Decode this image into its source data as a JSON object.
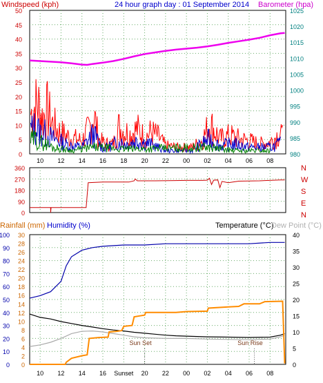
{
  "header": {
    "left_label": "Windspeed (kph)",
    "title": "24 hour graph day : 01 September 2014",
    "right_label": "Barometer (hpa)"
  },
  "colors": {
    "plot_bg": "#ffffff",
    "axis_line": "#000000",
    "grid": "#66aa66",
    "wind_gust": "#ff0000",
    "wind_avg": "#0000cc",
    "wind_low": "#008000",
    "barometer": "#ee00ee",
    "left_axis": "#cc0000",
    "right_axis": "#008080",
    "direction": "#cc0000",
    "humidity": "#0000aa",
    "temperature": "#000000",
    "dew_point": "#aaaaaa",
    "rainfall": "#ff8c00",
    "text_red": "#cc0000",
    "text_magenta": "#cc00cc",
    "text_blue": "#0000cc",
    "text_black": "#000000",
    "text_grey": "#b0b0b0",
    "text_orange": "#cc6600"
  },
  "chart_data": [
    {
      "type": "line",
      "name_ref": "wind_barometer",
      "x_hours_start": 9,
      "x_hours_end": 33.5,
      "x_ticks": [
        "10",
        "12",
        "14",
        "16",
        "18",
        "20",
        "22",
        "00",
        "02",
        "04",
        "06",
        "08"
      ],
      "y_left": {
        "label": "Windspeed (kph)",
        "ylim": [
          0,
          50
        ],
        "ticks": [
          0,
          5,
          10,
          15,
          20,
          25,
          30,
          35,
          40,
          45,
          50
        ]
      },
      "y_right": {
        "label": "Barometer (hpa)",
        "ylim": [
          980,
          1025
        ],
        "ticks": [
          980,
          985,
          990,
          995,
          1000,
          1005,
          1010,
          1015,
          1020,
          1025
        ]
      },
      "barometer": [
        [
          9.0,
          1009.3
        ],
        [
          10.0,
          1009.1
        ],
        [
          11.0,
          1008.9
        ],
        [
          12.0,
          1008.7
        ],
        [
          13.0,
          1008.4
        ],
        [
          14.0,
          1008.0
        ],
        [
          14.5,
          1007.9
        ],
        [
          15.0,
          1008.2
        ],
        [
          16.0,
          1008.6
        ],
        [
          17.0,
          1009.1
        ],
        [
          18.0,
          1009.8
        ],
        [
          19.0,
          1010.6
        ],
        [
          20.0,
          1011.3
        ],
        [
          21.0,
          1011.8
        ],
        [
          22.0,
          1012.3
        ],
        [
          23.0,
          1012.7
        ],
        [
          24.0,
          1013.0
        ],
        [
          25.0,
          1013.3
        ],
        [
          26.0,
          1013.7
        ],
        [
          27.0,
          1014.2
        ],
        [
          28.0,
          1014.8
        ],
        [
          29.0,
          1015.3
        ],
        [
          30.0,
          1015.8
        ],
        [
          31.0,
          1016.4
        ],
        [
          32.0,
          1017.2
        ],
        [
          33.0,
          1017.8
        ],
        [
          33.4,
          1017.9
        ]
      ],
      "wind_gust_peaks": [
        [
          9.1,
          24
        ],
        [
          9.4,
          28
        ],
        [
          9.8,
          30
        ],
        [
          10.2,
          22
        ],
        [
          10.7,
          26
        ],
        [
          11.2,
          18
        ],
        [
          11.7,
          14
        ],
        [
          12.2,
          12
        ],
        [
          12.8,
          10
        ],
        [
          13.4,
          9
        ],
        [
          14.0,
          8
        ],
        [
          14.4,
          12
        ],
        [
          14.8,
          17
        ],
        [
          15.1,
          25
        ],
        [
          15.6,
          9
        ],
        [
          16.2,
          6
        ],
        [
          17.0,
          6
        ],
        [
          17.5,
          16
        ],
        [
          18.0,
          14
        ],
        [
          18.6,
          12
        ],
        [
          19.3,
          15
        ],
        [
          20.0,
          10
        ],
        [
          20.6,
          13
        ],
        [
          21.2,
          11
        ],
        [
          22.0,
          5
        ],
        [
          23.0,
          4
        ],
        [
          24.5,
          4
        ],
        [
          25.5,
          8
        ],
        [
          26.2,
          18
        ],
        [
          26.6,
          15
        ],
        [
          27.2,
          9
        ],
        [
          28.2,
          11
        ],
        [
          29.0,
          9
        ],
        [
          30.0,
          8
        ],
        [
          31.0,
          6
        ],
        [
          32.0,
          7
        ],
        [
          32.8,
          12
        ],
        [
          33.2,
          10
        ]
      ],
      "wind_avg_peaks": [
        [
          9.1,
          14
        ],
        [
          9.5,
          16
        ],
        [
          10.0,
          13
        ],
        [
          10.6,
          12
        ],
        [
          11.2,
          9
        ],
        [
          11.8,
          8
        ],
        [
          12.4,
          6
        ],
        [
          13.0,
          5
        ],
        [
          14.0,
          4
        ],
        [
          15.1,
          12
        ],
        [
          16.0,
          3
        ],
        [
          17.5,
          7
        ],
        [
          18.3,
          6
        ],
        [
          19.3,
          8
        ],
        [
          20.5,
          6
        ],
        [
          22.0,
          2
        ],
        [
          24.5,
          2
        ],
        [
          26.2,
          9
        ],
        [
          27.2,
          5
        ],
        [
          28.5,
          6
        ],
        [
          30.0,
          4
        ],
        [
          32.0,
          4
        ],
        [
          33.0,
          6
        ]
      ],
      "wind_low_peaks": [
        [
          9.1,
          8
        ],
        [
          9.5,
          9
        ],
        [
          10.0,
          7
        ],
        [
          10.6,
          6
        ],
        [
          11.2,
          4
        ],
        [
          12.0,
          3
        ],
        [
          13.0,
          2
        ],
        [
          15.1,
          4
        ],
        [
          17.5,
          3
        ],
        [
          19.3,
          3
        ],
        [
          26.2,
          4
        ],
        [
          28.5,
          2
        ],
        [
          32.0,
          2
        ]
      ]
    },
    {
      "type": "line",
      "name_ref": "wind_direction",
      "y_ticks": [
        "360",
        "270",
        "180",
        "90",
        "0"
      ],
      "compass_labels": [
        "N",
        "W",
        "S",
        "E",
        "N"
      ],
      "ylim": [
        0,
        360
      ],
      "points": [
        [
          9.0,
          40
        ],
        [
          11.0,
          40
        ],
        [
          11.01,
          0
        ],
        [
          11.05,
          40
        ],
        [
          14.3,
          40
        ],
        [
          14.4,
          40
        ],
        [
          14.6,
          240
        ],
        [
          16.0,
          245
        ],
        [
          17.0,
          245
        ],
        [
          18.5,
          245
        ],
        [
          19.0,
          255
        ],
        [
          19.1,
          270
        ],
        [
          19.3,
          255
        ],
        [
          21.0,
          255
        ],
        [
          24.0,
          258
        ],
        [
          25.5,
          258
        ],
        [
          26.0,
          260
        ],
        [
          26.2,
          275
        ],
        [
          26.4,
          225
        ],
        [
          26.6,
          260
        ],
        [
          27.0,
          262
        ],
        [
          27.2,
          200
        ],
        [
          27.4,
          250
        ],
        [
          28.0,
          240
        ],
        [
          29.0,
          252
        ],
        [
          31.0,
          255
        ],
        [
          33.0,
          262
        ],
        [
          33.4,
          262
        ]
      ]
    },
    {
      "type": "line",
      "name_ref": "rain_humidity_temp",
      "header": {
        "rainfall_label": "Rainfall (mm)",
        "humidity_label": "Humidity (%)",
        "temperature_label": "Temperature (°C)",
        "dewpoint_label": "Dew Point (°C)"
      },
      "y_hum": {
        "ylim": [
          0,
          100
        ],
        "ticks": [
          0,
          10,
          20,
          30,
          40,
          50,
          60,
          70,
          80,
          90,
          100
        ]
      },
      "y_rain": {
        "ylim": [
          0,
          30
        ],
        "ticks": [
          0,
          2,
          4,
          6,
          8,
          10,
          12,
          14,
          16,
          18,
          20,
          22,
          24,
          26,
          28,
          30
        ]
      },
      "y_temp": {
        "ylim": [
          0,
          40
        ],
        "ticks": [
          0,
          5,
          10,
          15,
          20,
          25,
          30,
          35,
          40
        ]
      },
      "humidity": [
        [
          9.0,
          51
        ],
        [
          10.0,
          53
        ],
        [
          11.0,
          56
        ],
        [
          12.0,
          64
        ],
        [
          12.5,
          76
        ],
        [
          13.0,
          83
        ],
        [
          14.0,
          88
        ],
        [
          15.0,
          90
        ],
        [
          16.0,
          91
        ],
        [
          18.0,
          92
        ],
        [
          20.0,
          92
        ],
        [
          22.0,
          93
        ],
        [
          24.0,
          93
        ],
        [
          26.0,
          93
        ],
        [
          28.0,
          93
        ],
        [
          30.0,
          93
        ],
        [
          32.0,
          94
        ],
        [
          33.4,
          94
        ]
      ],
      "temperature_c": [
        [
          9.0,
          15.5
        ],
        [
          10.0,
          14.5
        ],
        [
          11.0,
          14.0
        ],
        [
          12.0,
          13.2
        ],
        [
          13.0,
          12.6
        ],
        [
          14.0,
          12.0
        ],
        [
          15.0,
          11.5
        ],
        [
          16.0,
          11.0
        ],
        [
          17.0,
          10.6
        ],
        [
          18.0,
          10.3
        ],
        [
          19.0,
          9.9
        ],
        [
          20.0,
          9.6
        ],
        [
          21.0,
          9.3
        ],
        [
          22.0,
          9.0
        ],
        [
          23.0,
          8.8
        ],
        [
          24.0,
          8.7
        ],
        [
          25.0,
          8.6
        ],
        [
          26.0,
          8.5
        ],
        [
          28.0,
          8.4
        ],
        [
          30.0,
          8.3
        ],
        [
          32.0,
          8.4
        ],
        [
          33.0,
          9.0
        ],
        [
          33.4,
          9.5
        ]
      ],
      "dew_point_c": [
        [
          9.0,
          5.5
        ],
        [
          10.0,
          6.0
        ],
        [
          11.0,
          6.8
        ],
        [
          12.0,
          8.0
        ],
        [
          13.0,
          9.5
        ],
        [
          14.0,
          10.2
        ],
        [
          15.0,
          10.3
        ],
        [
          16.0,
          10.0
        ],
        [
          17.0,
          9.5
        ],
        [
          18.0,
          9.0
        ],
        [
          19.0,
          8.5
        ],
        [
          20.0,
          8.2
        ],
        [
          22.0,
          8.0
        ],
        [
          24.0,
          8.0
        ],
        [
          26.0,
          7.8
        ],
        [
          28.0,
          7.7
        ],
        [
          30.0,
          7.6
        ],
        [
          32.0,
          7.8
        ],
        [
          33.0,
          8.5
        ],
        [
          33.4,
          9.0
        ]
      ],
      "rainfall_mm": [
        [
          9.0,
          0
        ],
        [
          12.4,
          0
        ],
        [
          12.5,
          0.5
        ],
        [
          13.0,
          1.4
        ],
        [
          14.0,
          2.0
        ],
        [
          14.5,
          2.2
        ],
        [
          14.7,
          6.0
        ],
        [
          15.6,
          6.2
        ],
        [
          16.5,
          6.3
        ],
        [
          16.6,
          7.5
        ],
        [
          17.2,
          7.6
        ],
        [
          17.8,
          7.8
        ],
        [
          18.0,
          8.8
        ],
        [
          18.8,
          9.0
        ],
        [
          19.0,
          11.0
        ],
        [
          19.5,
          11.2
        ],
        [
          20.0,
          11.4
        ],
        [
          20.1,
          12.0
        ],
        [
          23.0,
          12.0
        ],
        [
          24.0,
          12.2
        ],
        [
          26.0,
          12.3
        ],
        [
          26.1,
          13.0
        ],
        [
          28.0,
          13.3
        ],
        [
          29.0,
          13.4
        ],
        [
          29.5,
          14.0
        ],
        [
          31.0,
          14.0
        ],
        [
          31.5,
          14.5
        ],
        [
          33.2,
          14.6
        ],
        [
          33.4,
          0.2
        ]
      ],
      "annotations": [
        {
          "text": "Sun Set",
          "x": 20.0
        },
        {
          "text": "Sun Rise",
          "x": 30.5
        }
      ],
      "x_tick_labels": [
        "10",
        "12",
        "14",
        "16",
        "Sunset",
        "20",
        "22",
        "00",
        "02",
        "04",
        "06",
        "08"
      ]
    }
  ]
}
